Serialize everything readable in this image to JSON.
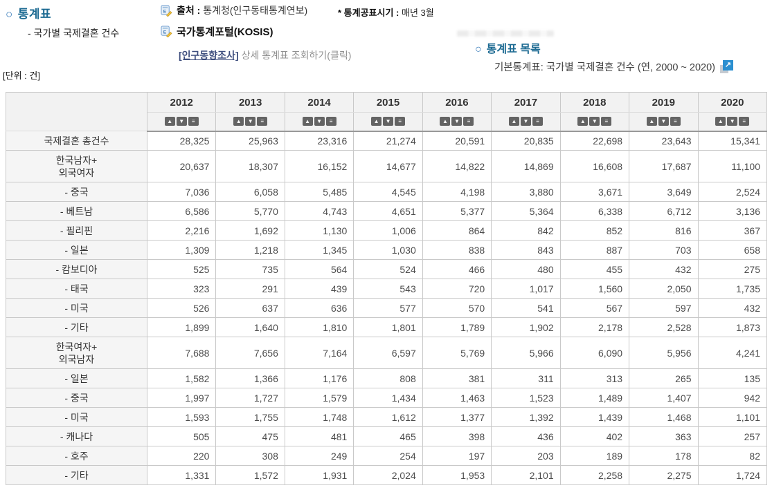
{
  "colors": {
    "heading_teal": "#1c6a92",
    "circle_blue": "#2e75b6",
    "link_navy": "#3e4e7e",
    "sort_button_gray": "#646464",
    "header_bg": "#f2f2f2",
    "row_label_bg": "#f5f5f5",
    "ext_icon_blue": "#2b8fd0"
  },
  "header": {
    "section_title": "통계표",
    "subtitle": "- 국가별 국제결혼 건수",
    "source_label": "출처 :",
    "source_value": "통계청(인구동태통계연보)",
    "publish_label": "* 통계공표시기 :",
    "publish_value": "매년 3월",
    "portal_label": "국가통계포털(KOSIS)",
    "survey_link_label": "[인구동향조사]",
    "survey_link_suffix": "상세 통계표 조회하기(클릭)",
    "list_section_title": "통계표 목록",
    "list_item_text": "기본통계표: 국가별 국제결혼 건수 (연, 2000 ~ 2020)",
    "ext_icon_glyph": "↗",
    "unit_label": "[단위 : 건]"
  },
  "table": {
    "years": [
      "2012",
      "2013",
      "2014",
      "2015",
      "2016",
      "2017",
      "2018",
      "2019",
      "2020"
    ],
    "sort_glyphs": {
      "asc": "▲",
      "desc": "▼",
      "menu": "≡"
    },
    "rows": [
      {
        "label_lines": [
          "국제결혼 총건수"
        ],
        "values": [
          "28,325",
          "25,963",
          "23,316",
          "21,274",
          "20,591",
          "20,835",
          "22,698",
          "23,643",
          "15,341"
        ]
      },
      {
        "label_lines": [
          "한국남자+",
          "외국여자"
        ],
        "values": [
          "20,637",
          "18,307",
          "16,152",
          "14,677",
          "14,822",
          "14,869",
          "16,608",
          "17,687",
          "11,100"
        ]
      },
      {
        "label_lines": [
          "- 중국"
        ],
        "values": [
          "7,036",
          "6,058",
          "5,485",
          "4,545",
          "4,198",
          "3,880",
          "3,671",
          "3,649",
          "2,524"
        ]
      },
      {
        "label_lines": [
          "- 베트남"
        ],
        "values": [
          "6,586",
          "5,770",
          "4,743",
          "4,651",
          "5,377",
          "5,364",
          "6,338",
          "6,712",
          "3,136"
        ]
      },
      {
        "label_lines": [
          "- 필리핀"
        ],
        "values": [
          "2,216",
          "1,692",
          "1,130",
          "1,006",
          "864",
          "842",
          "852",
          "816",
          "367"
        ]
      },
      {
        "label_lines": [
          "- 일본"
        ],
        "values": [
          "1,309",
          "1,218",
          "1,345",
          "1,030",
          "838",
          "843",
          "887",
          "703",
          "658"
        ]
      },
      {
        "label_lines": [
          "- 캄보디아"
        ],
        "values": [
          "525",
          "735",
          "564",
          "524",
          "466",
          "480",
          "455",
          "432",
          "275"
        ]
      },
      {
        "label_lines": [
          "- 태국"
        ],
        "values": [
          "323",
          "291",
          "439",
          "543",
          "720",
          "1,017",
          "1,560",
          "2,050",
          "1,735"
        ]
      },
      {
        "label_lines": [
          "- 미국"
        ],
        "values": [
          "526",
          "637",
          "636",
          "577",
          "570",
          "541",
          "567",
          "597",
          "432"
        ]
      },
      {
        "label_lines": [
          "- 기타"
        ],
        "values": [
          "1,899",
          "1,640",
          "1,810",
          "1,801",
          "1,789",
          "1,902",
          "2,178",
          "2,528",
          "1,873"
        ]
      },
      {
        "label_lines": [
          "한국여자+",
          "외국남자"
        ],
        "values": [
          "7,688",
          "7,656",
          "7,164",
          "6,597",
          "5,769",
          "5,966",
          "6,090",
          "5,956",
          "4,241"
        ]
      },
      {
        "label_lines": [
          "- 일본"
        ],
        "values": [
          "1,582",
          "1,366",
          "1,176",
          "808",
          "381",
          "311",
          "313",
          "265",
          "135"
        ]
      },
      {
        "label_lines": [
          "- 중국"
        ],
        "values": [
          "1,997",
          "1,727",
          "1,579",
          "1,434",
          "1,463",
          "1,523",
          "1,489",
          "1,407",
          "942"
        ]
      },
      {
        "label_lines": [
          "- 미국"
        ],
        "values": [
          "1,593",
          "1,755",
          "1,748",
          "1,612",
          "1,377",
          "1,392",
          "1,439",
          "1,468",
          "1,101"
        ]
      },
      {
        "label_lines": [
          "- 캐나다"
        ],
        "values": [
          "505",
          "475",
          "481",
          "465",
          "398",
          "436",
          "402",
          "363",
          "257"
        ]
      },
      {
        "label_lines": [
          "- 호주"
        ],
        "values": [
          "220",
          "308",
          "249",
          "254",
          "197",
          "203",
          "189",
          "178",
          "82"
        ]
      },
      {
        "label_lines": [
          "- 기타"
        ],
        "values": [
          "1,331",
          "1,572",
          "1,931",
          "2,024",
          "1,953",
          "2,101",
          "2,258",
          "2,275",
          "1,724"
        ]
      }
    ]
  }
}
